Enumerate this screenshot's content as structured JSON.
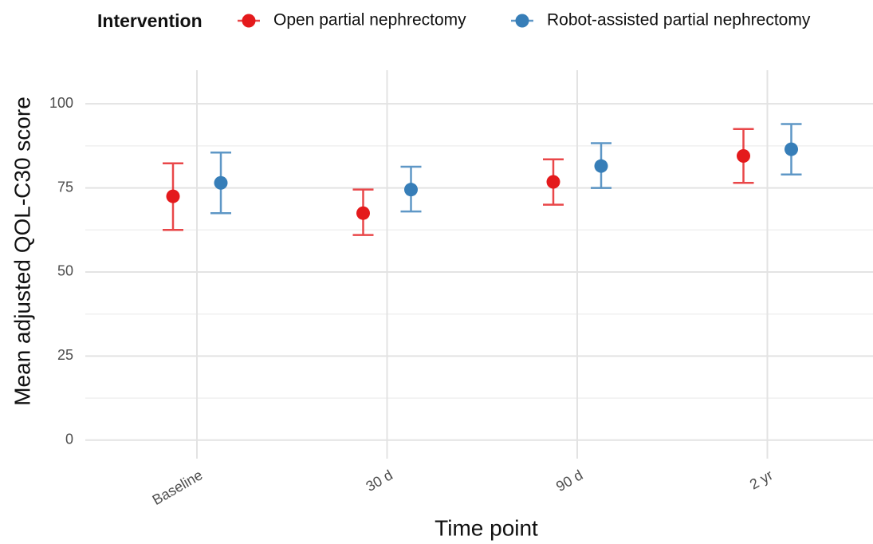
{
  "chart_data": {
    "type": "point-errorbar",
    "legend_title": "Intervention",
    "legend_position": "top",
    "x_label": "Time point",
    "y_label": "Mean adjusted QOL-C30 score",
    "categories": [
      "Baseline",
      "30 d",
      "90 d",
      "2 yr"
    ],
    "series": [
      {
        "name": "Open partial nephrectomy",
        "color": "#e41a1c",
        "values": [
          72.5,
          67.5,
          76.8,
          84.5
        ],
        "lower": [
          62.5,
          61,
          70,
          76.5
        ],
        "upper": [
          82.3,
          74.5,
          83.5,
          92.5
        ]
      },
      {
        "name": "Robot-assisted partial nephrectomy",
        "color": "#377eb8",
        "values": [
          76.5,
          74.5,
          81.5,
          86.5
        ],
        "lower": [
          67.5,
          68,
          75,
          79
        ],
        "upper": [
          85.5,
          81.3,
          88.3,
          94
        ]
      }
    ],
    "ylim": [
      -5.5,
      110
    ],
    "yticks": [
      0,
      25,
      50,
      75,
      100
    ],
    "y_minor_ticks": [
      12.5,
      37.5,
      62.5,
      87.5
    ],
    "grid": true
  }
}
